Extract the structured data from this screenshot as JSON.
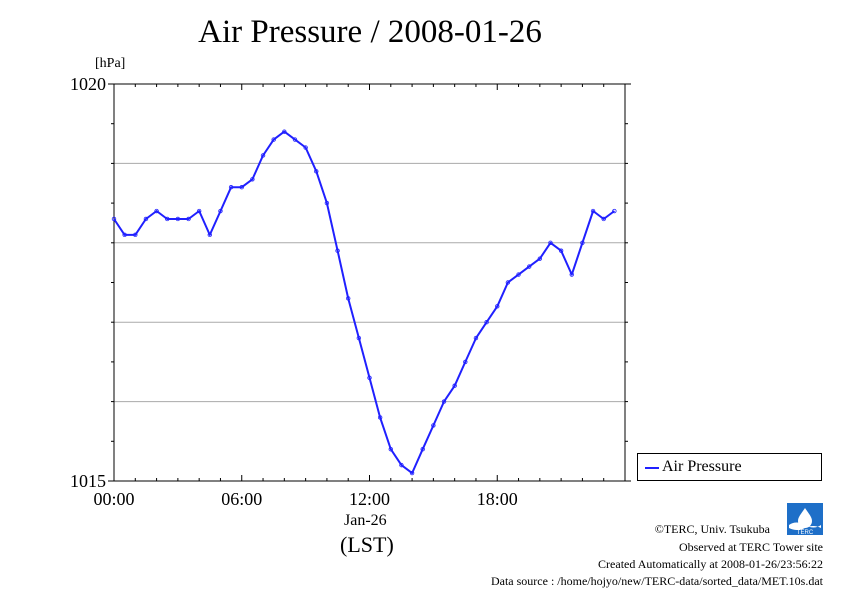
{
  "title": "Air Pressure / 2008-01-26",
  "footer": {
    "copyright": "©TERC, Univ. Tsukuba",
    "observed": "Observed at TERC Tower site",
    "created": "Created Automatically at 2008-01-26/23:56:22",
    "source": "Data source : /home/hojyo/new/TERC-data/sorted_data/MET.10s.dat"
  },
  "logo_text": "TERC",
  "chart_data": {
    "type": "line",
    "ylabel": "[hPa]",
    "xlabel_date": "Jan-26",
    "xlabel": "(LST)",
    "ylim": [
      1015,
      1020
    ],
    "y_ticks": [
      1015,
      1020
    ],
    "y_gridlines": [
      1016,
      1017,
      1018,
      1019
    ],
    "xlim_hours": [
      0,
      24
    ],
    "x_ticks": [
      "00:00",
      "06:00",
      "12:00",
      "18:00"
    ],
    "grid": true,
    "legend_position": "right",
    "series_color": "#2020ff",
    "series": [
      {
        "name": "Air Pressure",
        "x": [
          0.0,
          0.5,
          1.0,
          1.5,
          2.0,
          2.5,
          3.0,
          3.5,
          4.0,
          4.5,
          5.0,
          5.5,
          6.0,
          6.5,
          7.0,
          7.5,
          8.0,
          8.5,
          9.0,
          9.5,
          10.0,
          10.5,
          11.0,
          11.5,
          12.0,
          12.5,
          13.0,
          13.5,
          14.0,
          14.5,
          15.0,
          15.5,
          16.0,
          16.5,
          17.0,
          17.5,
          18.0,
          18.5,
          19.0,
          19.5,
          20.0,
          20.5,
          21.0,
          21.5,
          22.0,
          22.5,
          23.0,
          23.5
        ],
        "values": [
          1018.3,
          1018.1,
          1018.1,
          1018.3,
          1018.4,
          1018.3,
          1018.3,
          1018.3,
          1018.4,
          1018.1,
          1018.4,
          1018.7,
          1018.7,
          1018.8,
          1019.1,
          1019.3,
          1019.4,
          1019.3,
          1019.2,
          1018.9,
          1018.5,
          1017.9,
          1017.3,
          1016.8,
          1016.3,
          1015.8,
          1015.4,
          1015.2,
          1015.1,
          1015.4,
          1015.7,
          1016.0,
          1016.2,
          1016.5,
          1016.8,
          1017.0,
          1017.2,
          1017.5,
          1017.6,
          1017.7,
          1017.8,
          1018.0,
          1017.9,
          1017.6,
          1018.0,
          1018.4,
          1018.3,
          1018.4
        ]
      }
    ]
  }
}
